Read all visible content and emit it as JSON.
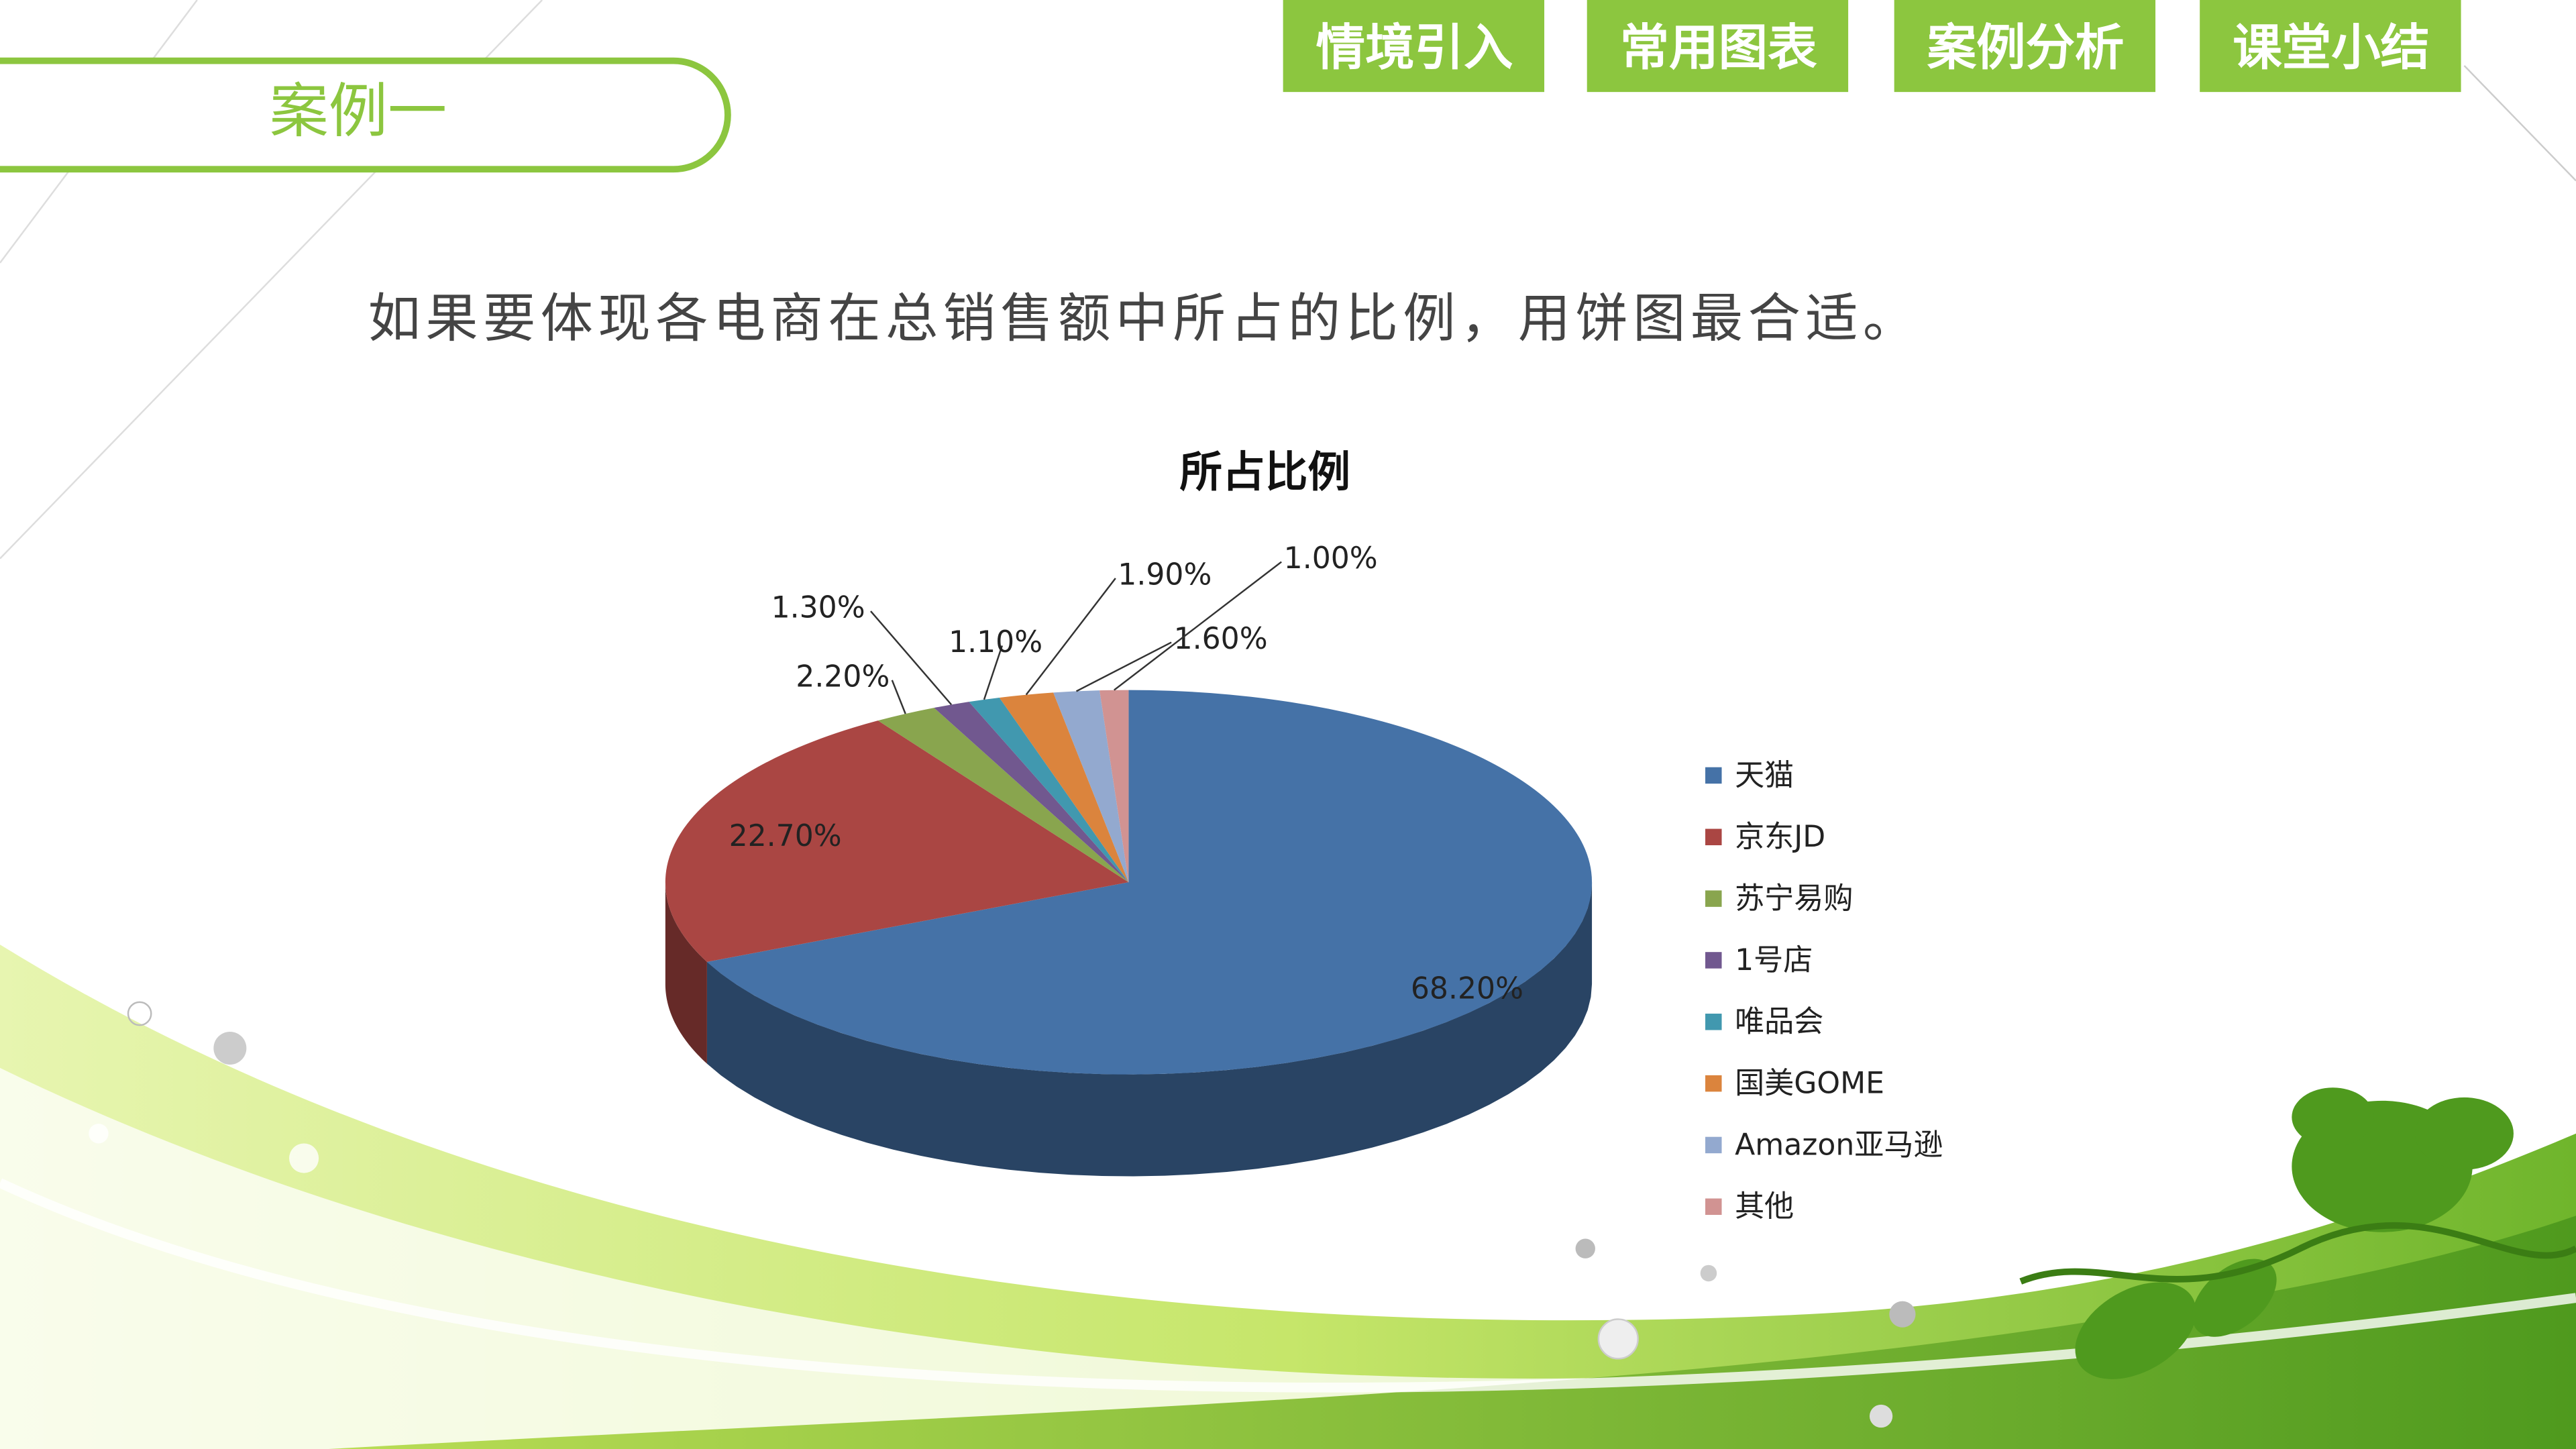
{
  "nav": [
    "情境引入",
    "常用图表",
    "案例分析",
    "课堂小结"
  ],
  "active_nav": 2,
  "section_title": "案例一",
  "subtitle": "如果要体现各电商在总销售额中所占的比例，用饼图最合适。",
  "chart_data": {
    "type": "pie",
    "title": "所占比例",
    "categories": [
      "天猫",
      "京东JD",
      "苏宁易购",
      "1号店",
      "唯品会",
      "国美GOME",
      "Amazon亚马逊",
      "其他"
    ],
    "values": [
      68.2,
      22.7,
      2.2,
      1.3,
      1.1,
      1.9,
      1.6,
      1.0
    ],
    "value_labels": [
      "68.20%",
      "22.70%",
      "2.20%",
      "1.30%",
      "1.10%",
      "1.90%",
      "1.60%",
      "1.00%"
    ],
    "colors": [
      "#4572a7",
      "#aa4643",
      "#89a54e",
      "#71588f",
      "#4198af",
      "#db843d",
      "#93a9cf",
      "#d19392"
    ],
    "legend": "right"
  }
}
